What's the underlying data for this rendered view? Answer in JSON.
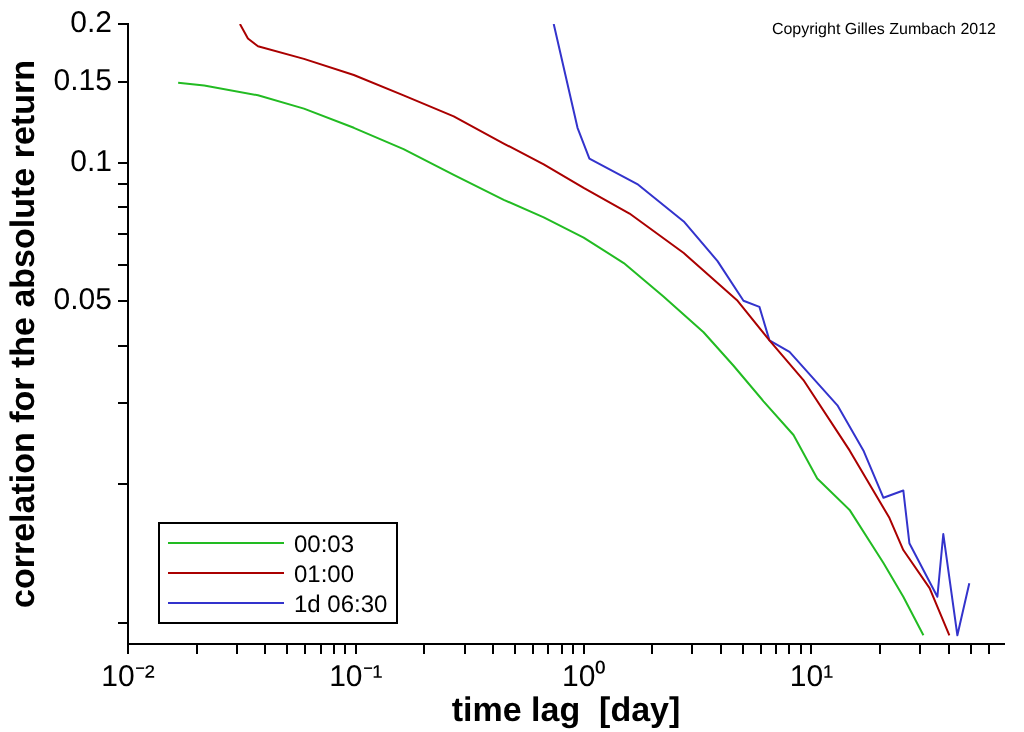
{
  "chart_data": {
    "type": "line",
    "xlabel": "time lag  [day]",
    "ylabel": "correlation for the absolute return",
    "log": "xy",
    "grid": false,
    "legend": "bottom left",
    "marker": "none",
    "line_style": "solid",
    "annotations": [
      "Copyright Gilles Zumbach 2012"
    ],
    "xlim": [
      0.01,
      70
    ],
    "ylim": [
      0.009,
      0.2
    ],
    "xticks": [
      {
        "value": 0.01,
        "label": "10⁻²"
      },
      {
        "value": 0.02,
        "label": null
      },
      {
        "value": 0.03,
        "label": null
      },
      {
        "value": 0.04,
        "label": null
      },
      {
        "value": 0.05,
        "label": null
      },
      {
        "value": 0.06,
        "label": null
      },
      {
        "value": 0.07,
        "label": null
      },
      {
        "value": 0.08,
        "label": null
      },
      {
        "value": 0.09,
        "label": null
      },
      {
        "value": 0.1,
        "label": "10⁻¹"
      },
      {
        "value": 0.2,
        "label": null
      },
      {
        "value": 0.3,
        "label": null
      },
      {
        "value": 0.4,
        "label": null
      },
      {
        "value": 0.5,
        "label": null
      },
      {
        "value": 0.6,
        "label": null
      },
      {
        "value": 0.7,
        "label": null
      },
      {
        "value": 0.8,
        "label": null
      },
      {
        "value": 0.9,
        "label": null
      },
      {
        "value": 1,
        "label": "10⁰"
      },
      {
        "value": 2,
        "label": null
      },
      {
        "value": 3,
        "label": null
      },
      {
        "value": 4,
        "label": null
      },
      {
        "value": 5,
        "label": null
      },
      {
        "value": 6,
        "label": null
      },
      {
        "value": 7,
        "label": null
      },
      {
        "value": 8,
        "label": null
      },
      {
        "value": 9,
        "label": null
      },
      {
        "value": 10,
        "label": "10¹"
      },
      {
        "value": 20,
        "label": null
      },
      {
        "value": 30,
        "label": null
      },
      {
        "value": 40,
        "label": null
      },
      {
        "value": 50,
        "label": null
      },
      {
        "value": 60,
        "label": null
      }
    ],
    "yticks": [
      {
        "value": 0.01,
        "label": null
      },
      {
        "value": 0.02,
        "label": null
      },
      {
        "value": 0.03,
        "label": null
      },
      {
        "value": 0.04,
        "label": null
      },
      0.05,
      {
        "value": 0.06,
        "label": null
      },
      {
        "value": 0.07,
        "label": null
      },
      {
        "value": 0.08,
        "label": null
      },
      {
        "value": 0.09,
        "label": null
      },
      0.1,
      0.15,
      0.2
    ],
    "series": [
      {
        "name": "00:03",
        "color": "#22bb22",
        "x": [
          0.0166,
          0.0216,
          0.0372,
          0.0592,
          0.098,
          0.162,
          0.269,
          0.446,
          0.668,
          1,
          1.5,
          2.24,
          3.36,
          4.55,
          6.16,
          8.34,
          10.6,
          14.7,
          20.7,
          25.3,
          31
        ],
        "values": [
          0.149,
          0.147,
          0.14,
          0.131,
          0.119,
          0.107,
          0.094,
          0.083,
          0.076,
          0.0687,
          0.0605,
          0.0512,
          0.0428,
          0.0362,
          0.0303,
          0.0256,
          0.0206,
          0.0176,
          0.0135,
          0.0114,
          0.0094
        ]
      },
      {
        "name": "01:00",
        "color": "#aa0000",
        "x": [
          0.031,
          0.0336,
          0.0372,
          0.0592,
          0.098,
          0.162,
          0.269,
          0.446,
          0.668,
          1,
          1.59,
          2.75,
          4.74,
          6.54,
          9.22,
          14.7,
          22,
          25.3,
          33,
          40.3
        ],
        "values": [
          0.2,
          0.186,
          0.179,
          0.168,
          0.155,
          0.14,
          0.126,
          0.11,
          0.0991,
          0.0881,
          0.0775,
          0.0636,
          0.0501,
          0.0411,
          0.0337,
          0.0237,
          0.0169,
          0.0144,
          0.0119,
          0.0094
        ]
      },
      {
        "name": "1d 06:30",
        "color": "#3333cc",
        "x": [
          0.739,
          0.94,
          1.06,
          1.72,
          2.75,
          3.87,
          5.03,
          5.91,
          6.54,
          8.01,
          13,
          16.9,
          20.7,
          25.3,
          26.9,
          35.7,
          37.9,
          43.7,
          49.3
        ],
        "values": [
          0.2,
          0.119,
          0.102,
          0.0898,
          0.0745,
          0.0611,
          0.0501,
          0.0486,
          0.0411,
          0.0388,
          0.0297,
          0.0237,
          0.0187,
          0.0194,
          0.0149,
          0.0114,
          0.0156,
          0.0094,
          0.0122
        ]
      }
    ]
  }
}
